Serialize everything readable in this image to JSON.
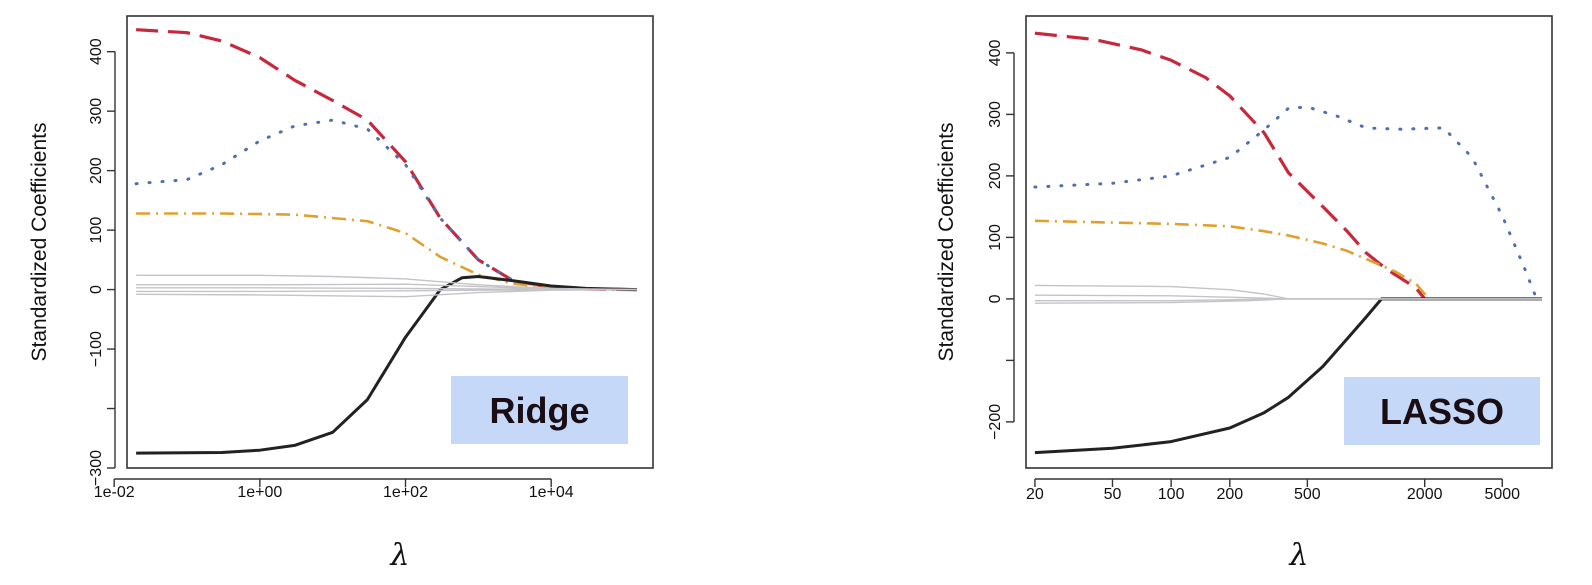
{
  "chart_data": [
    {
      "type": "line",
      "label": "Ridge",
      "xlabel": "λ",
      "ylabel": "Standardized Coefficients",
      "xscale": "log",
      "xlim": [
        0.015,
        250000
      ],
      "ylim": [
        -300,
        460
      ],
      "xticks": [
        {
          "value": 0.01,
          "label": "1e-02"
        },
        {
          "value": 1,
          "label": "1e+00"
        },
        {
          "value": 100,
          "label": "1e+02"
        },
        {
          "value": 10000,
          "label": "1e+04"
        }
      ],
      "yticks": [
        {
          "value": -300,
          "label": "−300"
        },
        {
          "value": -200,
          "label": ""
        },
        {
          "value": -100,
          "label": "−100"
        },
        {
          "value": 0,
          "label": "0"
        },
        {
          "value": 100,
          "label": "100"
        },
        {
          "value": 200,
          "label": "200"
        },
        {
          "value": 300,
          "label": "300"
        },
        {
          "value": 400,
          "label": "400"
        }
      ],
      "grid": false,
      "series": [
        {
          "color": "#c8283c",
          "dash": "dashed",
          "width": 3.2,
          "points": [
            [
              0.02,
              437
            ],
            [
              0.1,
              432
            ],
            [
              0.3,
              418
            ],
            [
              1,
              390
            ],
            [
              3,
              352
            ],
            [
              10,
              318
            ],
            [
              30,
              285
            ],
            [
              100,
              215
            ],
            [
              300,
              120
            ],
            [
              1000,
              50
            ],
            [
              3000,
              15
            ],
            [
              10000,
              4
            ],
            [
              30000,
              1
            ],
            [
              150000,
              0
            ]
          ]
        },
        {
          "color": "#4f6fb0",
          "dash": "dotted",
          "width": 3,
          "points": [
            [
              0.02,
              178
            ],
            [
              0.1,
              185
            ],
            [
              0.3,
              210
            ],
            [
              1,
              250
            ],
            [
              3,
              275
            ],
            [
              10,
              285
            ],
            [
              30,
              270
            ],
            [
              100,
              210
            ],
            [
              300,
              120
            ],
            [
              1000,
              50
            ],
            [
              3000,
              15
            ],
            [
              10000,
              4
            ],
            [
              30000,
              1
            ],
            [
              150000,
              0
            ]
          ]
        },
        {
          "color": "#e0a030",
          "dash": "dashdot",
          "width": 2.6,
          "points": [
            [
              0.02,
              128
            ],
            [
              0.3,
              128
            ],
            [
              3,
              126
            ],
            [
              30,
              115
            ],
            [
              100,
              95
            ],
            [
              300,
              55
            ],
            [
              1000,
              25
            ],
            [
              3000,
              10
            ],
            [
              10000,
              3
            ],
            [
              30000,
              1
            ],
            [
              150000,
              0
            ]
          ]
        },
        {
          "color": "#222222",
          "dash": "solid",
          "width": 3,
          "points": [
            [
              0.02,
              -275
            ],
            [
              0.3,
              -274
            ],
            [
              1,
              -270
            ],
            [
              3,
              -262
            ],
            [
              10,
              -240
            ],
            [
              30,
              -185
            ],
            [
              100,
              -80
            ],
            [
              300,
              0
            ],
            [
              600,
              20
            ],
            [
              1000,
              22
            ],
            [
              3000,
              15
            ],
            [
              10000,
              6
            ],
            [
              30000,
              2
            ],
            [
              150000,
              0
            ]
          ]
        },
        {
          "color": "#c4c4c8",
          "dash": "solid",
          "width": 1.4,
          "points": [
            [
              0.02,
              24
            ],
            [
              1,
              24
            ],
            [
              10,
              22
            ],
            [
              100,
              18
            ],
            [
              1000,
              8
            ],
            [
              10000,
              2
            ],
            [
              150000,
              0
            ]
          ]
        },
        {
          "color": "#c4c4c8",
          "dash": "solid",
          "width": 1.4,
          "points": [
            [
              0.02,
              8
            ],
            [
              1,
              8
            ],
            [
              100,
              9
            ],
            [
              1000,
              5
            ],
            [
              10000,
              1
            ],
            [
              150000,
              0
            ]
          ]
        },
        {
          "color": "#c4c4c8",
          "dash": "solid",
          "width": 1.4,
          "points": [
            [
              0.02,
              3
            ],
            [
              1,
              3
            ],
            [
              100,
              2
            ],
            [
              1000,
              1
            ],
            [
              150000,
              0
            ]
          ]
        },
        {
          "color": "#c4c4c8",
          "dash": "solid",
          "width": 1.4,
          "points": [
            [
              0.02,
              -3
            ],
            [
              1,
              -3
            ],
            [
              100,
              -2
            ],
            [
              1000,
              -1
            ],
            [
              150000,
              0
            ]
          ]
        },
        {
          "color": "#c4c4c8",
          "dash": "solid",
          "width": 1.4,
          "points": [
            [
              0.02,
              -8
            ],
            [
              1,
              -9
            ],
            [
              100,
              -12
            ],
            [
              1000,
              -5
            ],
            [
              10000,
              -1
            ],
            [
              150000,
              0
            ]
          ]
        }
      ]
    },
    {
      "type": "line",
      "label": "LASSO",
      "xlabel": "λ",
      "ylabel": "Standardized Coefficients",
      "xscale": "log",
      "xlim": [
        18,
        9000
      ],
      "ylim": [
        -275,
        460
      ],
      "xticks": [
        {
          "value": 20,
          "label": "20"
        },
        {
          "value": 50,
          "label": "50"
        },
        {
          "value": 100,
          "label": "100"
        },
        {
          "value": 200,
          "label": "200"
        },
        {
          "value": 500,
          "label": "500"
        },
        {
          "value": 2000,
          "label": "2000"
        },
        {
          "value": 5000,
          "label": "5000"
        }
      ],
      "yticks": [
        {
          "value": -200,
          "label": "−200"
        },
        {
          "value": -100,
          "label": ""
        },
        {
          "value": 0,
          "label": "0"
        },
        {
          "value": 100,
          "label": "100"
        },
        {
          "value": 200,
          "label": "200"
        },
        {
          "value": 300,
          "label": "300"
        },
        {
          "value": 400,
          "label": "400"
        }
      ],
      "grid": false,
      "series": [
        {
          "color": "#c8283c",
          "dash": "dashed",
          "width": 3.2,
          "points": [
            [
              20,
              432
            ],
            [
              40,
              422
            ],
            [
              70,
              405
            ],
            [
              100,
              388
            ],
            [
              150,
              360
            ],
            [
              200,
              330
            ],
            [
              300,
              270
            ],
            [
              400,
              205
            ],
            [
              600,
              150
            ],
            [
              800,
              110
            ],
            [
              1000,
              75
            ],
            [
              1200,
              55
            ],
            [
              1400,
              40
            ],
            [
              1800,
              18
            ],
            [
              2000,
              0
            ]
          ]
        },
        {
          "color": "#4f6fb0",
          "dash": "dotted",
          "width": 3,
          "points": [
            [
              20,
              182
            ],
            [
              50,
              188
            ],
            [
              100,
              200
            ],
            [
              200,
              230
            ],
            [
              300,
              275
            ],
            [
              400,
              310
            ],
            [
              500,
              312
            ],
            [
              700,
              298
            ],
            [
              1000,
              278
            ],
            [
              1500,
              276
            ],
            [
              2500,
              278
            ],
            [
              3500,
              230
            ],
            [
              5000,
              135
            ],
            [
              6500,
              50
            ],
            [
              7500,
              0
            ]
          ]
        },
        {
          "color": "#e0a030",
          "dash": "dashdot",
          "width": 2.6,
          "points": [
            [
              20,
              127
            ],
            [
              100,
              122
            ],
            [
              200,
              118
            ],
            [
              300,
              110
            ],
            [
              400,
              103
            ],
            [
              600,
              90
            ],
            [
              800,
              78
            ],
            [
              1000,
              65
            ],
            [
              1400,
              45
            ],
            [
              1800,
              25
            ],
            [
              2100,
              0
            ]
          ]
        },
        {
          "color": "#222222",
          "dash": "solid",
          "width": 3,
          "points": [
            [
              20,
              -250
            ],
            [
              50,
              -243
            ],
            [
              100,
              -232
            ],
            [
              200,
              -210
            ],
            [
              300,
              -185
            ],
            [
              400,
              -160
            ],
            [
              600,
              -110
            ],
            [
              800,
              -65
            ],
            [
              1000,
              -30
            ],
            [
              1200,
              0
            ],
            [
              8000,
              0
            ]
          ]
        },
        {
          "color": "#c4c4c8",
          "dash": "solid",
          "width": 1.4,
          "points": [
            [
              20,
              22
            ],
            [
              100,
              20
            ],
            [
              200,
              15
            ],
            [
              300,
              8
            ],
            [
              400,
              0
            ],
            [
              8000,
              0
            ]
          ]
        },
        {
          "color": "#c4c4c8",
          "dash": "solid",
          "width": 1.4,
          "points": [
            [
              20,
              6
            ],
            [
              100,
              5
            ],
            [
              250,
              2
            ],
            [
              400,
              0
            ],
            [
              8000,
              0
            ]
          ]
        },
        {
          "color": "#c4c4c8",
          "dash": "solid",
          "width": 1.4,
          "points": [
            [
              20,
              -3
            ],
            [
              100,
              -3
            ],
            [
              250,
              -1
            ],
            [
              400,
              0
            ],
            [
              8000,
              0
            ]
          ]
        },
        {
          "color": "#c4c4c8",
          "dash": "solid",
          "width": 1.4,
          "points": [
            [
              20,
              -7
            ],
            [
              100,
              -6
            ],
            [
              250,
              -3
            ],
            [
              400,
              0
            ],
            [
              8000,
              0
            ]
          ]
        }
      ]
    }
  ]
}
